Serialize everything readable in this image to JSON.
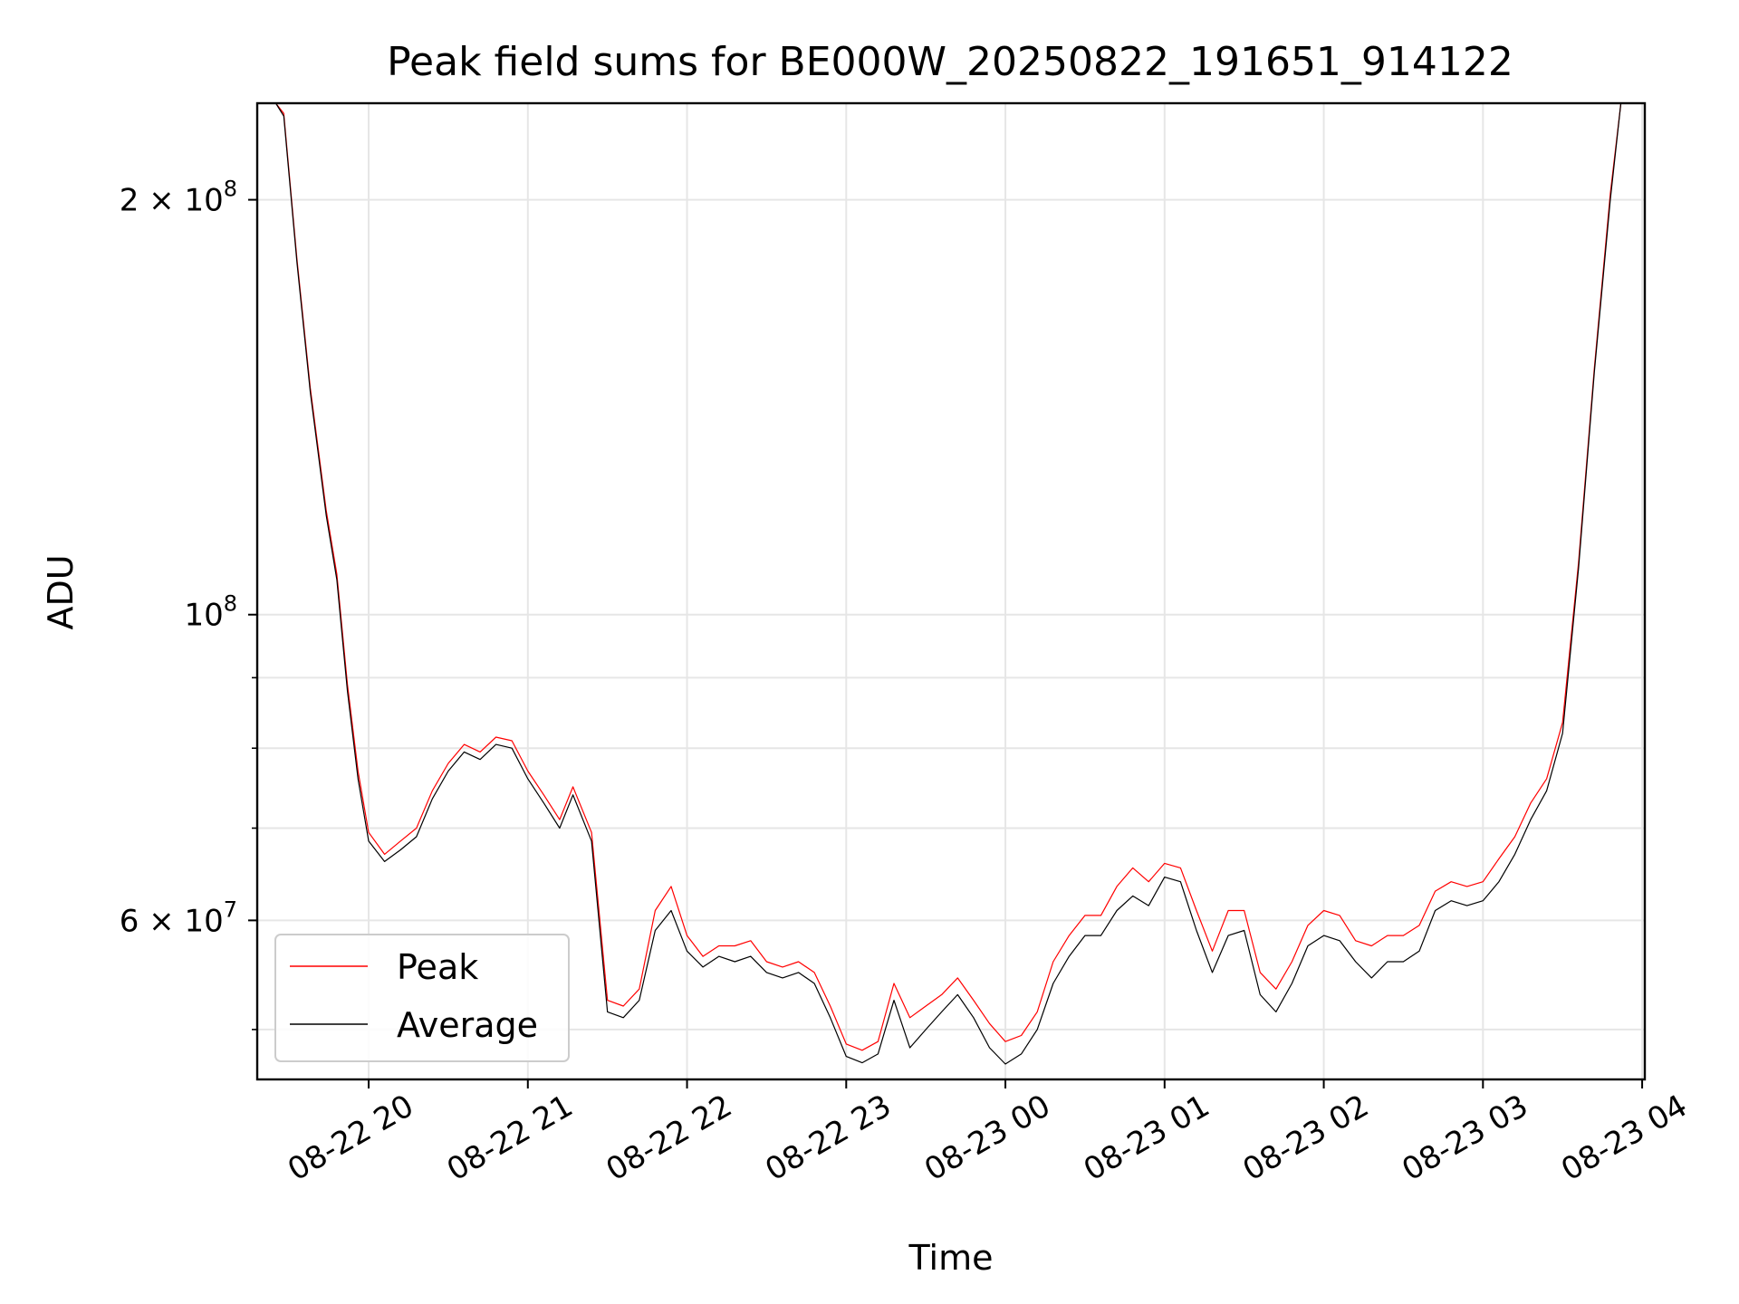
{
  "chart_data": {
    "type": "line",
    "title": "Peak field sums for BE000W_20250822_191651_914122",
    "xlabel": "Time",
    "ylabel": "ADU",
    "yscale": "log",
    "grid": true,
    "legend_position": "lower-left",
    "xlim": [
      "2025-08-22 19:18",
      "2025-08-23 04:01"
    ],
    "ylim": [
      46000000,
      235000000
    ],
    "x_ticks": [
      "08-22 20",
      "08-22 21",
      "08-22 22",
      "08-22 23",
      "08-23 00",
      "08-23 01",
      "08-23 02",
      "08-23 03",
      "08-23 04"
    ],
    "y_ticks_major": [
      {
        "value": 100000000,
        "base": "10",
        "exp": "8",
        "mant": ""
      },
      {
        "value": 200000000,
        "base": "10",
        "exp": "8",
        "mant": "2 × "
      },
      {
        "value": 60000000,
        "base": "10",
        "exp": "7",
        "mant": "6 × "
      }
    ],
    "y_ticks_minor": [
      50000000,
      70000000,
      80000000,
      90000000
    ],
    "series": [
      {
        "name": "Peak",
        "color": "#ff0000",
        "width": 1.2
      },
      {
        "name": "Average",
        "color": "#000000",
        "width": 1.2
      }
    ],
    "x": [
      "2025-08-22 19:18",
      "2025-08-22 19:25",
      "2025-08-22 19:28",
      "2025-08-22 19:33",
      "2025-08-22 19:38",
      "2025-08-22 19:44",
      "2025-08-22 19:48",
      "2025-08-22 19:52",
      "2025-08-22 19:56",
      "2025-08-22 20:00",
      "2025-08-22 20:06",
      "2025-08-22 20:12",
      "2025-08-22 20:18",
      "2025-08-22 20:24",
      "2025-08-22 20:30",
      "2025-08-22 20:36",
      "2025-08-22 20:42",
      "2025-08-22 20:48",
      "2025-08-22 20:54",
      "2025-08-22 21:00",
      "2025-08-22 21:06",
      "2025-08-22 21:12",
      "2025-08-22 21:17",
      "2025-08-22 21:24",
      "2025-08-22 21:30",
      "2025-08-22 21:36",
      "2025-08-22 21:42",
      "2025-08-22 21:48",
      "2025-08-22 21:54",
      "2025-08-22 22:00",
      "2025-08-22 22:06",
      "2025-08-22 22:12",
      "2025-08-22 22:18",
      "2025-08-22 22:24",
      "2025-08-22 22:30",
      "2025-08-22 22:36",
      "2025-08-22 22:42",
      "2025-08-22 22:48",
      "2025-08-22 22:54",
      "2025-08-22 23:00",
      "2025-08-22 23:06",
      "2025-08-22 23:12",
      "2025-08-22 23:18",
      "2025-08-22 23:24",
      "2025-08-22 23:30",
      "2025-08-22 23:36",
      "2025-08-22 23:42",
      "2025-08-22 23:48",
      "2025-08-22 23:54",
      "2025-08-23 00:00",
      "2025-08-23 00:06",
      "2025-08-23 00:12",
      "2025-08-23 00:18",
      "2025-08-23 00:24",
      "2025-08-23 00:30",
      "2025-08-23 00:36",
      "2025-08-23 00:42",
      "2025-08-23 00:48",
      "2025-08-23 00:54",
      "2025-08-23 01:00",
      "2025-08-23 01:06",
      "2025-08-23 01:12",
      "2025-08-23 01:18",
      "2025-08-23 01:24",
      "2025-08-23 01:30",
      "2025-08-23 01:36",
      "2025-08-23 01:42",
      "2025-08-23 01:48",
      "2025-08-23 01:54",
      "2025-08-23 02:00",
      "2025-08-23 02:06",
      "2025-08-23 02:12",
      "2025-08-23 02:18",
      "2025-08-23 02:24",
      "2025-08-23 02:30",
      "2025-08-23 02:36",
      "2025-08-23 02:42",
      "2025-08-23 02:48",
      "2025-08-23 02:54",
      "2025-08-23 03:00",
      "2025-08-23 03:06",
      "2025-08-23 03:12",
      "2025-08-23 03:18",
      "2025-08-23 03:24",
      "2025-08-23 03:30",
      "2025-08-23 03:36",
      "2025-08-23 03:42",
      "2025-08-23 03:48",
      "2025-08-23 03:52",
      "2025-08-23 03:55"
    ],
    "average": [
      235000000,
      235000000,
      230000000,
      180000000,
      145000000,
      118000000,
      106000000,
      88000000,
      76000000,
      68500000,
      66200000,
      67500000,
      69000000,
      73500000,
      77000000,
      79500000,
      78500000,
      80500000,
      80000000,
      76000000,
      73000000,
      70000000,
      74000000,
      68500000,
      51500000,
      51000000,
      52500000,
      59000000,
      61000000,
      57000000,
      55500000,
      56500000,
      56000000,
      56500000,
      55000000,
      54500000,
      55000000,
      54000000,
      51000000,
      47800000,
      47300000,
      48000000,
      52500000,
      48500000,
      50000000,
      51500000,
      53000000,
      51000000,
      48500000,
      47200000,
      48000000,
      50000000,
      54000000,
      56500000,
      58500000,
      58500000,
      61000000,
      62500000,
      61500000,
      64500000,
      64000000,
      59000000,
      55000000,
      58500000,
      59000000,
      53000000,
      51500000,
      54000000,
      57500000,
      58500000,
      58000000,
      56000000,
      54500000,
      56000000,
      56000000,
      57000000,
      61000000,
      62000000,
      61500000,
      62000000,
      64000000,
      67000000,
      71000000,
      74500000,
      82000000,
      108000000,
      150000000,
      200000000,
      235000000,
      235000000
    ],
    "peak": [
      235000000,
      235000000,
      231000000,
      181000000,
      146000000,
      119000000,
      107000000,
      89000000,
      77000000,
      69500000,
      67000000,
      68500000,
      70000000,
      74500000,
      78000000,
      80500000,
      79500000,
      81500000,
      81000000,
      77000000,
      74000000,
      71000000,
      75000000,
      69500000,
      52500000,
      52000000,
      53500000,
      61000000,
      63500000,
      58500000,
      56500000,
      57500000,
      57500000,
      58000000,
      56000000,
      55500000,
      56000000,
      55000000,
      52000000,
      48800000,
      48300000,
      49000000,
      54000000,
      51000000,
      52000000,
      53000000,
      54500000,
      52500000,
      50500000,
      49000000,
      49500000,
      51500000,
      56000000,
      58500000,
      60500000,
      60500000,
      63500000,
      65500000,
      64000000,
      66000000,
      65500000,
      61000000,
      57000000,
      61000000,
      61000000,
      55000000,
      53500000,
      56000000,
      59500000,
      61000000,
      60500000,
      58000000,
      57500000,
      58500000,
      58500000,
      59500000,
      63000000,
      64000000,
      63500000,
      64000000,
      66500000,
      69000000,
      73000000,
      76000000,
      83500000,
      109000000,
      151000000,
      202000000,
      235000000,
      235000000
    ]
  }
}
